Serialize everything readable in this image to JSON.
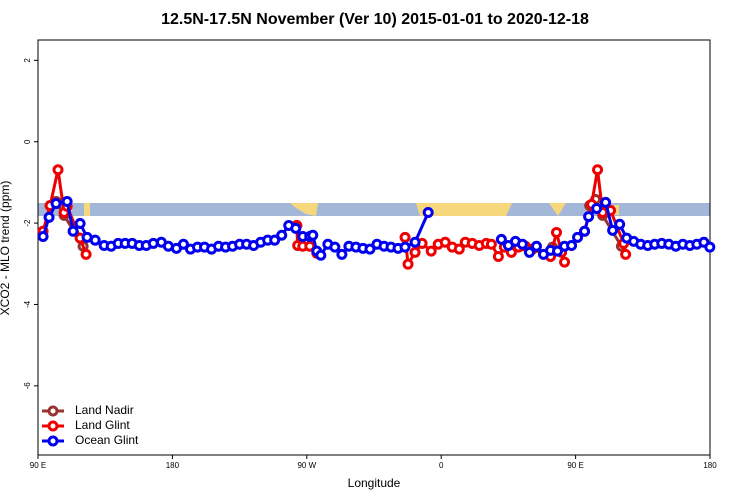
{
  "chart_data": {
    "type": "line",
    "title": "12.5N-17.5N November (Ver 10)   2015-01-01 to 2020-12-18",
    "x_label": "Longitude",
    "y_label": "XCO2 - MLO trend (ppm)",
    "xlim": [
      90,
      540
    ],
    "ylim": [
      -7.7,
      2.5
    ],
    "xticks": [
      {
        "value": 90,
        "label": "90 E"
      },
      {
        "value": 180,
        "label": "180"
      },
      {
        "value": 270,
        "label": "90 W"
      },
      {
        "value": 360,
        "label": "0"
      },
      {
        "value": 450,
        "label": "90 E"
      },
      {
        "value": 540,
        "label": "180"
      }
    ],
    "yticks": [
      -6,
      -4,
      -2,
      0,
      2
    ],
    "legend": "bottom-left",
    "series": [
      {
        "name": "Land Nadir",
        "color": "#993333",
        "x": [
          98.1,
          102.1,
          107.5,
          120.2,
          200,
          263.3,
          350,
          434.5,
          445,
          459.4,
          463.4,
          468.1,
          480.7
        ],
        "values": [
          -1.57,
          -1.47,
          -1.81,
          -2.57,
          null,
          -2.06,
          null,
          -2.59,
          null,
          -1.57,
          -1.42,
          -1.81,
          -2.57
        ]
      },
      {
        "name": "Land Glint",
        "color": "#ee0000",
        "x": [
          93.4,
          98.1,
          103.4,
          107.5,
          109.5,
          118.2,
          122.2,
          200,
          263.3,
          263.9,
          267.3,
          272.0,
          276.7,
          300,
          335.8,
          337.8,
          342.5,
          347.2,
          353.3,
          358.0,
          362.7,
          367.4,
          372.1,
          376.1,
          380.8,
          385.5,
          390.2,
          393.6,
          398.3,
          402.3,
          407.0,
          411.7,
          416.4,
          421.1,
          433.2,
          437.2,
          440.6,
          442.6,
          450,
          456.0,
          460.7,
          464.7,
          468.1,
          473.4,
          482.2,
          483.5
        ],
        "values": [
          -2.2,
          -1.57,
          -0.69,
          -1.74,
          -1.59,
          -2.37,
          -2.77,
          null,
          -2.06,
          -2.55,
          -2.57,
          -2.57,
          -2.74,
          null,
          -2.35,
          -3.01,
          -2.72,
          -2.5,
          -2.69,
          -2.52,
          -2.47,
          -2.59,
          -2.64,
          -2.47,
          -2.5,
          -2.55,
          -2.5,
          -2.52,
          -2.82,
          -2.59,
          -2.72,
          -2.59,
          -2.57,
          -2.64,
          -2.82,
          -2.23,
          -2.72,
          -2.96,
          null,
          -2.2,
          -1.54,
          -0.69,
          -1.74,
          -1.69,
          -2.5,
          -2.77
        ]
      },
      {
        "name": "Ocean Glint",
        "color": "#0000ee",
        "x": [
          93.4,
          97.4,
          102.1,
          109.5,
          113.5,
          118.2,
          122.9,
          128.3,
          134.3,
          139.0,
          143.7,
          148.4,
          153.1,
          157.8,
          162.5,
          167.2,
          172.6,
          177.3,
          182.7,
          187.4,
          192.1,
          196.8,
          201.5,
          206.2,
          210.9,
          215.6,
          220.3,
          225.0,
          229.7,
          234.4,
          239.1,
          243.8,
          248.5,
          253.2,
          257.9,
          262.6,
          267.3,
          272.0,
          274.0,
          276.7,
          279.4,
          284.1,
          288.8,
          293.5,
          298.2,
          302.9,
          307.6,
          312.3,
          317.0,
          321.7,
          326.4,
          331.1,
          335.8,
          342.5,
          351.3,
          375,
          400.3,
          405.0,
          409.7,
          414.4,
          419.1,
          423.8,
          428.5,
          433.2,
          437.9,
          442.6,
          447.3,
          451.3,
          456.0,
          458.7,
          464.1,
          470.1,
          474.8,
          479.5,
          484.2,
          488.9,
          493.6,
          498.3,
          503.0,
          507.7,
          512.4,
          517.1,
          521.8,
          526.5,
          531.2,
          535.9,
          539.9
        ],
        "values": [
          -2.33,
          -1.86,
          -1.52,
          -1.47,
          -2.2,
          -2.01,
          -2.35,
          -2.42,
          -2.55,
          -2.57,
          -2.5,
          -2.5,
          -2.5,
          -2.55,
          -2.55,
          -2.5,
          -2.47,
          -2.57,
          -2.62,
          -2.52,
          -2.64,
          -2.59,
          -2.59,
          -2.64,
          -2.57,
          -2.59,
          -2.57,
          -2.52,
          -2.52,
          -2.55,
          -2.47,
          -2.42,
          -2.42,
          -2.3,
          -2.06,
          -2.13,
          -2.33,
          -2.33,
          -2.3,
          -2.69,
          -2.79,
          -2.52,
          -2.59,
          -2.77,
          -2.57,
          -2.59,
          -2.62,
          -2.64,
          -2.52,
          -2.57,
          -2.59,
          -2.62,
          -2.59,
          -2.47,
          -1.74,
          null,
          -2.4,
          -2.55,
          -2.45,
          -2.52,
          -2.72,
          -2.57,
          -2.77,
          -2.67,
          -2.69,
          -2.57,
          -2.55,
          -2.35,
          -2.2,
          -1.84,
          -1.64,
          -1.49,
          -2.18,
          -2.03,
          -2.37,
          -2.45,
          -2.52,
          -2.55,
          -2.52,
          -2.5,
          -2.52,
          -2.57,
          -2.52,
          -2.55,
          -2.52,
          -2.47,
          -2.59
        ]
      }
    ]
  }
}
